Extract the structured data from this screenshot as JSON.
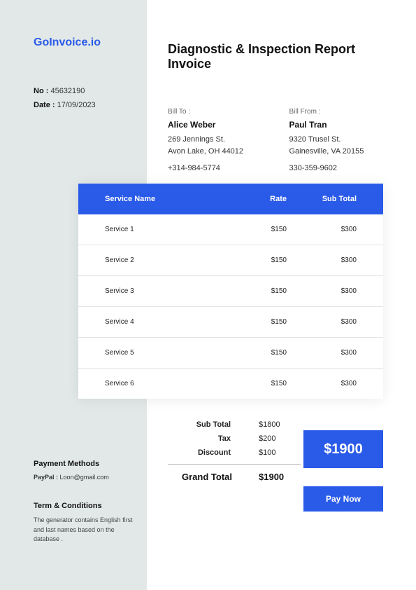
{
  "brand": "GoInvoice.io",
  "meta": {
    "no_label": "No :",
    "no_value": "45632190",
    "date_label": "Date :",
    "date_value": "17/09/2023"
  },
  "title": "Diagnostic & Inspection Report Invoice",
  "bill_to": {
    "label": "Bill To :",
    "name": "Alice Weber",
    "addr1": "269 Jennings St.",
    "addr2": "Avon Lake, OH 44012",
    "phone": "+314-984-5774"
  },
  "bill_from": {
    "label": "Bill From :",
    "name": "Paul Tran",
    "addr1": "9320 Trusel St.",
    "addr2": "Gainesville, VA 20155",
    "phone": "330-359-9602"
  },
  "table": {
    "headers": {
      "name": "Service Name",
      "rate": "Rate",
      "sub": "Sub Total"
    },
    "rows": [
      {
        "name": "Service 1",
        "rate": "$150",
        "sub": "$300"
      },
      {
        "name": "Service 2",
        "rate": "$150",
        "sub": "$300"
      },
      {
        "name": "Service 3",
        "rate": "$150",
        "sub": "$300"
      },
      {
        "name": "Service 4",
        "rate": "$150",
        "sub": "$300"
      },
      {
        "name": "Service 5",
        "rate": "$150",
        "sub": "$300"
      },
      {
        "name": "Service 6",
        "rate": "$150",
        "sub": "$300"
      }
    ]
  },
  "totals": {
    "subtotal_label": "Sub Total",
    "subtotal": "$1800",
    "tax_label": "Tax",
    "tax": "$200",
    "discount_label": "Discount",
    "discount": "$100",
    "grand_label": "Grand Total",
    "grand": "$1900",
    "grand_box": "$1900"
  },
  "pay_button": "Pay Now",
  "payment_methods": {
    "heading": "Payment Methods",
    "paypal_label": "PayPal :",
    "paypal_value": "Loon@gmail.com"
  },
  "terms": {
    "heading": "Term & Conditions",
    "body": "The generator contains English first and last names based on the database ."
  },
  "colors": {
    "accent": "#2a5ae8",
    "sidebar_bg": "#e2e8e8",
    "white": "#ffffff",
    "row_border": "#e4e4e4"
  }
}
